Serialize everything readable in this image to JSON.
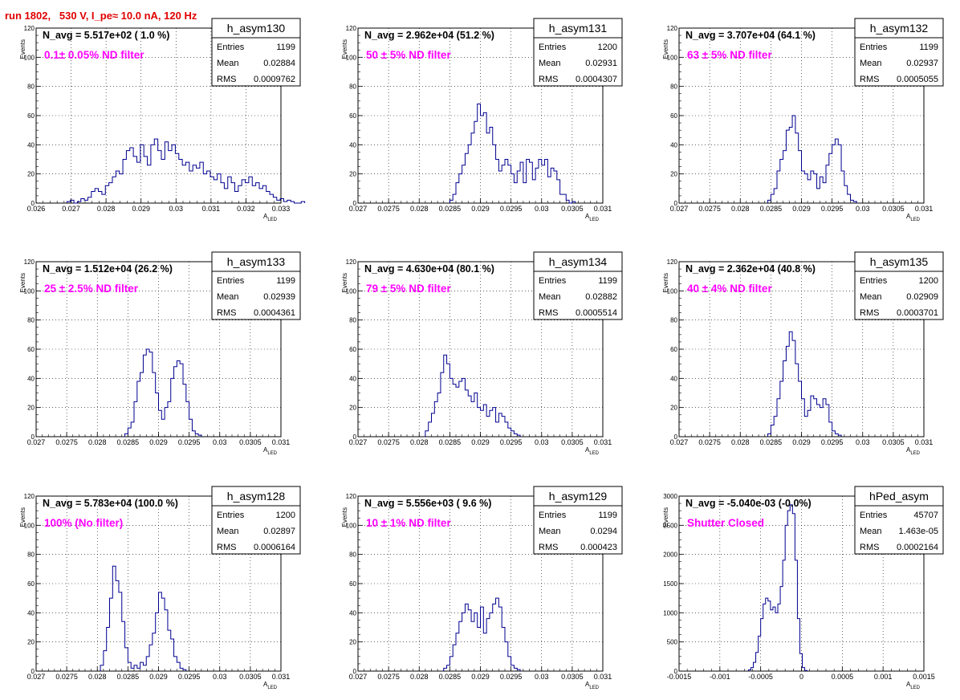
{
  "run_title": "run 1802,   530 V, I_pe≈ 10.0 nA, 120 Hz",
  "colors": {
    "title": "#e00000",
    "hist_line": "#000090",
    "filter_text": "#ff00ff",
    "grid": "#000000"
  },
  "chart_data": [
    {
      "type": "histogram",
      "grid": true,
      "legend_placement": "top-right stats box",
      "name": "h_asym130",
      "navg": "N_avg = 5.517e+02 ( 1.0 %)",
      "filter": "0.1± 0.05% ND filter",
      "stats": [
        [
          "Entries",
          "1199"
        ],
        [
          "Mean",
          "0.02884"
        ],
        [
          "RMS",
          "0.0009762"
        ]
      ],
      "xlabel": "A",
      "xlabel_sub": "LED",
      "ylabel": "Events",
      "xlim": [
        0.026,
        0.033
      ],
      "ylim": [
        0,
        120
      ],
      "xticks": [
        {
          "v": 0.026,
          "l": "0.026"
        },
        {
          "v": 0.027,
          "l": "0.027"
        },
        {
          "v": 0.028,
          "l": "0.028"
        },
        {
          "v": 0.029,
          "l": "0.029"
        },
        {
          "v": 0.03,
          "l": "0.03"
        },
        {
          "v": 0.031,
          "l": "0.031"
        },
        {
          "v": 0.032,
          "l": "0.032"
        },
        {
          "v": 0.033,
          "l": "0.033"
        }
      ],
      "yticks": [
        0,
        20,
        40,
        60,
        80,
        100,
        120
      ],
      "x_start": 0.02688,
      "bin_width": 0.0001,
      "values": [
        1,
        2,
        0,
        1,
        3,
        2,
        4,
        8,
        10,
        8,
        6,
        12,
        14,
        18,
        22,
        20,
        30,
        36,
        38,
        32,
        28,
        40,
        32,
        26,
        40,
        44,
        36,
        30,
        42,
        36,
        40,
        34,
        30,
        26,
        28,
        22,
        26,
        24,
        28,
        20,
        22,
        18,
        16,
        20,
        14,
        10,
        18,
        14,
        8,
        12,
        16,
        14,
        18,
        12,
        14,
        10,
        12,
        8,
        6,
        4,
        2,
        3,
        1,
        2,
        1,
        0,
        0,
        1
      ]
    },
    {
      "type": "histogram",
      "grid": true,
      "legend_placement": "top-right stats box",
      "name": "h_asym131",
      "navg": "N_avg = 2.962e+04 (51.2 %)",
      "filter": "50 ± 5% ND filter",
      "stats": [
        [
          "Entries",
          "1200"
        ],
        [
          "Mean",
          "0.02931"
        ],
        [
          "RMS",
          "0.0004307"
        ]
      ],
      "xlabel": "A",
      "xlabel_sub": "LED",
      "ylabel": "Events",
      "xlim": [
        0.027,
        0.031
      ],
      "ylim": [
        0,
        120
      ],
      "xticks": [
        {
          "v": 0.027,
          "l": "0.027"
        },
        {
          "v": 0.0275,
          "l": "0.0275"
        },
        {
          "v": 0.028,
          "l": "0.028"
        },
        {
          "v": 0.0285,
          "l": "0.0285"
        },
        {
          "v": 0.029,
          "l": "0.029"
        },
        {
          "v": 0.0295,
          "l": "0.0295"
        },
        {
          "v": 0.03,
          "l": "0.03"
        },
        {
          "v": 0.0305,
          "l": "0.0305"
        },
        {
          "v": 0.031,
          "l": "0.031"
        }
      ],
      "yticks": [
        0,
        20,
        40,
        60,
        80,
        100,
        120
      ],
      "x_start": 0.0285,
      "bin_width": 5e-05,
      "values": [
        2,
        6,
        14,
        20,
        26,
        34,
        40,
        48,
        56,
        68,
        60,
        62,
        48,
        52,
        40,
        30,
        22,
        26,
        30,
        26,
        20,
        14,
        22,
        28,
        14,
        30,
        28,
        16,
        24,
        30,
        26,
        30,
        18,
        24,
        22,
        16,
        6,
        6,
        2,
        0,
        1
      ]
    },
    {
      "type": "histogram",
      "grid": true,
      "legend_placement": "top-right stats box",
      "name": "h_asym132",
      "navg": "N_avg = 3.707e+04 (64.1 %)",
      "filter": "63 ± 5% ND filter",
      "stats": [
        [
          "Entries",
          "1199"
        ],
        [
          "Mean",
          "0.02937"
        ],
        [
          "RMS",
          "0.0005055"
        ]
      ],
      "xlabel": "A",
      "xlabel_sub": "LED",
      "ylabel": "Events",
      "xlim": [
        0.027,
        0.031
      ],
      "ylim": [
        0,
        120
      ],
      "xticks": [
        {
          "v": 0.027,
          "l": "0.027"
        },
        {
          "v": 0.0275,
          "l": "0.0275"
        },
        {
          "v": 0.028,
          "l": "0.028"
        },
        {
          "v": 0.0285,
          "l": "0.0285"
        },
        {
          "v": 0.029,
          "l": "0.029"
        },
        {
          "v": 0.0295,
          "l": "0.0295"
        },
        {
          "v": 0.03,
          "l": "0.03"
        },
        {
          "v": 0.0305,
          "l": "0.0305"
        },
        {
          "v": 0.031,
          "l": "0.031"
        }
      ],
      "yticks": [
        0,
        20,
        40,
        60,
        80,
        100,
        120
      ],
      "x_start": 0.02845,
      "bin_width": 5e-05,
      "values": [
        2,
        6,
        10,
        22,
        30,
        36,
        50,
        52,
        60,
        48,
        36,
        22,
        20,
        16,
        22,
        20,
        10,
        18,
        14,
        26,
        34,
        40,
        44,
        40,
        22,
        12,
        6,
        2,
        1
      ]
    },
    {
      "type": "histogram",
      "grid": true,
      "legend_placement": "top-right stats box",
      "name": "h_asym133",
      "navg": "N_avg = 1.512e+04 (26.2 %)",
      "filter": "25 ± 2.5% ND filter",
      "stats": [
        [
          "Entries",
          "1199"
        ],
        [
          "Mean",
          "0.02939"
        ],
        [
          "RMS",
          "0.0004361"
        ]
      ],
      "xlabel": "A",
      "xlabel_sub": "LED",
      "ylabel": "Events",
      "xlim": [
        0.027,
        0.031
      ],
      "ylim": [
        0,
        120
      ],
      "xticks": [
        {
          "v": 0.027,
          "l": "0.027"
        },
        {
          "v": 0.0275,
          "l": "0.0275"
        },
        {
          "v": 0.028,
          "l": "0.028"
        },
        {
          "v": 0.0285,
          "l": "0.0285"
        },
        {
          "v": 0.029,
          "l": "0.029"
        },
        {
          "v": 0.0295,
          "l": "0.0295"
        },
        {
          "v": 0.03,
          "l": "0.03"
        },
        {
          "v": 0.0305,
          "l": "0.0305"
        },
        {
          "v": 0.031,
          "l": "0.031"
        }
      ],
      "yticks": [
        0,
        20,
        40,
        60,
        80,
        100,
        120
      ],
      "x_start": 0.02845,
      "bin_width": 5e-05,
      "values": [
        2,
        6,
        10,
        24,
        38,
        44,
        56,
        60,
        58,
        44,
        30,
        18,
        12,
        20,
        24,
        40,
        48,
        52,
        50,
        36,
        24,
        12,
        4,
        2,
        1
      ]
    },
    {
      "type": "histogram",
      "grid": true,
      "legend_placement": "top-right stats box",
      "name": "h_asym134",
      "navg": "N_avg = 4.630e+04 (80.1 %)",
      "filter": "79 ± 5% ND filter",
      "stats": [
        [
          "Entries",
          "1199"
        ],
        [
          "Mean",
          "0.02882"
        ],
        [
          "RMS",
          "0.0005514"
        ]
      ],
      "xlabel": "A",
      "xlabel_sub": "LED",
      "ylabel": "Events",
      "xlim": [
        0.027,
        0.031
      ],
      "ylim": [
        0,
        120
      ],
      "xticks": [
        {
          "v": 0.027,
          "l": "0.027"
        },
        {
          "v": 0.0275,
          "l": "0.0275"
        },
        {
          "v": 0.028,
          "l": "0.028"
        },
        {
          "v": 0.0285,
          "l": "0.0285"
        },
        {
          "v": 0.029,
          "l": "0.029"
        },
        {
          "v": 0.0295,
          "l": "0.0295"
        },
        {
          "v": 0.03,
          "l": "0.03"
        },
        {
          "v": 0.0305,
          "l": "0.0305"
        },
        {
          "v": 0.031,
          "l": "0.031"
        }
      ],
      "yticks": [
        0,
        20,
        40,
        60,
        80,
        100,
        120
      ],
      "x_start": 0.0281,
      "bin_width": 5e-05,
      "values": [
        4,
        10,
        16,
        24,
        30,
        44,
        56,
        50,
        40,
        36,
        34,
        38,
        40,
        32,
        28,
        24,
        30,
        20,
        18,
        22,
        14,
        18,
        20,
        10,
        16,
        14,
        10,
        6,
        4,
        2,
        1
      ]
    },
    {
      "type": "histogram",
      "grid": true,
      "legend_placement": "top-right stats box",
      "name": "h_asym135",
      "navg": "N_avg = 2.362e+04 (40.8 %)",
      "filter": "40 ± 4% ND filter",
      "stats": [
        [
          "Entries",
          "1200"
        ],
        [
          "Mean",
          "0.02909"
        ],
        [
          "RMS",
          "0.0003701"
        ]
      ],
      "xlabel": "A",
      "xlabel_sub": "LED",
      "ylabel": "Events",
      "xlim": [
        0.027,
        0.031
      ],
      "ylim": [
        0,
        120
      ],
      "xticks": [
        {
          "v": 0.027,
          "l": "0.027"
        },
        {
          "v": 0.0275,
          "l": "0.0275"
        },
        {
          "v": 0.028,
          "l": "0.028"
        },
        {
          "v": 0.0285,
          "l": "0.0285"
        },
        {
          "v": 0.029,
          "l": "0.029"
        },
        {
          "v": 0.0295,
          "l": "0.0295"
        },
        {
          "v": 0.03,
          "l": "0.03"
        },
        {
          "v": 0.0305,
          "l": "0.0305"
        },
        {
          "v": 0.031,
          "l": "0.031"
        }
      ],
      "yticks": [
        0,
        20,
        40,
        60,
        80,
        100,
        120
      ],
      "x_start": 0.02845,
      "bin_width": 5e-05,
      "values": [
        2,
        8,
        14,
        26,
        38,
        52,
        62,
        72,
        66,
        50,
        38,
        26,
        14,
        18,
        28,
        26,
        22,
        20,
        26,
        22,
        10,
        4,
        2,
        1
      ]
    },
    {
      "type": "histogram",
      "grid": true,
      "legend_placement": "top-right stats box",
      "name": "h_asym128",
      "navg": "N_avg = 5.783e+04 (100.0 %)",
      "filter": "100% (No filter)",
      "stats": [
        [
          "Entries",
          "1200"
        ],
        [
          "Mean",
          "0.02897"
        ],
        [
          "RMS",
          "0.0006164"
        ]
      ],
      "xlabel": "A",
      "xlabel_sub": "LED",
      "ylabel": "Events",
      "xlim": [
        0.027,
        0.031
      ],
      "ylim": [
        0,
        120
      ],
      "xticks": [
        {
          "v": 0.027,
          "l": "0.027"
        },
        {
          "v": 0.0275,
          "l": "0.0275"
        },
        {
          "v": 0.028,
          "l": "0.028"
        },
        {
          "v": 0.0285,
          "l": "0.0285"
        },
        {
          "v": 0.029,
          "l": "0.029"
        },
        {
          "v": 0.0295,
          "l": "0.0295"
        },
        {
          "v": 0.03,
          "l": "0.03"
        },
        {
          "v": 0.0305,
          "l": "0.0305"
        },
        {
          "v": 0.031,
          "l": "0.031"
        }
      ],
      "yticks": [
        0,
        20,
        40,
        60,
        80,
        100,
        120
      ],
      "x_start": 0.02805,
      "bin_width": 5e-05,
      "values": [
        4,
        14,
        30,
        50,
        72,
        62,
        54,
        34,
        16,
        6,
        2,
        4,
        2,
        6,
        4,
        10,
        18,
        26,
        40,
        54,
        50,
        42,
        28,
        22,
        10,
        6,
        2,
        1
      ]
    },
    {
      "type": "histogram",
      "grid": true,
      "legend_placement": "top-right stats box",
      "name": "h_asym129",
      "navg": "N_avg = 5.556e+03 ( 9.6 %)",
      "filter": "10 ± 1% ND filter",
      "stats": [
        [
          "Entries",
          "1199"
        ],
        [
          "Mean",
          "0.0294"
        ],
        [
          "RMS",
          "0.000423"
        ]
      ],
      "xlabel": "A",
      "xlabel_sub": "LED",
      "ylabel": "Events",
      "xlim": [
        0.027,
        0.031
      ],
      "ylim": [
        0,
        120
      ],
      "xticks": [
        {
          "v": 0.027,
          "l": "0.027"
        },
        {
          "v": 0.0275,
          "l": "0.0275"
        },
        {
          "v": 0.028,
          "l": "0.028"
        },
        {
          "v": 0.0285,
          "l": "0.0285"
        },
        {
          "v": 0.029,
          "l": "0.029"
        },
        {
          "v": 0.0295,
          "l": "0.0295"
        },
        {
          "v": 0.03,
          "l": "0.03"
        },
        {
          "v": 0.0305,
          "l": "0.0305"
        },
        {
          "v": 0.031,
          "l": "0.031"
        }
      ],
      "yticks": [
        0,
        20,
        40,
        60,
        80,
        100,
        120
      ],
      "x_start": 0.0284,
      "bin_width": 5e-05,
      "values": [
        2,
        4,
        10,
        18,
        26,
        34,
        40,
        46,
        42,
        34,
        40,
        30,
        44,
        26,
        36,
        40,
        46,
        50,
        44,
        30,
        20,
        10,
        4,
        2,
        1
      ]
    },
    {
      "type": "histogram",
      "grid": true,
      "legend_placement": "top-right stats box",
      "name": "hPed_asym",
      "navg": "N_avg = -5.040e-03 (-0.0%)",
      "filter": "Shutter Closed",
      "stats": [
        [
          "Entries",
          "45707"
        ],
        [
          "Mean",
          "1.463e-05"
        ],
        [
          "RMS",
          "0.0002164"
        ]
      ],
      "xlabel": "A",
      "xlabel_sub": "LED",
      "ylabel": "Events",
      "xlim": [
        -0.0015,
        0.0015
      ],
      "ylim": [
        0,
        3000
      ],
      "xticks": [
        {
          "v": -0.0015,
          "l": "-0.0015"
        },
        {
          "v": -0.001,
          "l": "-0.001"
        },
        {
          "v": -0.0005,
          "l": "-0.0005"
        },
        {
          "v": 0,
          "l": "0"
        },
        {
          "v": 0.0005,
          "l": "0.0005"
        },
        {
          "v": 0.001,
          "l": "0.001"
        },
        {
          "v": 0.0015,
          "l": "0.0015"
        }
      ],
      "yticks": [
        0,
        500,
        1000,
        1500,
        2000,
        2500,
        3000
      ],
      "x_start": -0.00065,
      "bin_width": 3e-05,
      "values": [
        20,
        60,
        150,
        320,
        600,
        900,
        1150,
        1250,
        1200,
        1050,
        1100,
        1000,
        1150,
        1450,
        1900,
        2500,
        2750,
        2850,
        2700,
        1900,
        900,
        300,
        60,
        10
      ]
    }
  ]
}
